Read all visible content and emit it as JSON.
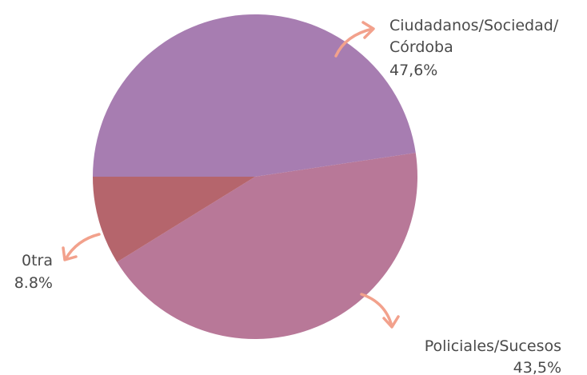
{
  "chart_data": {
    "type": "pie",
    "title": "",
    "slices": [
      {
        "label_lines": [
          "Ciudadanos/Sociedad/",
          "Córdoba"
        ],
        "value": 47.6,
        "value_text": "47,6%",
        "color": "#a77db1"
      },
      {
        "label_lines": [
          "Policiales/Sucesos"
        ],
        "value": 43.5,
        "value_text": "43,5%",
        "color": "#b87898"
      },
      {
        "label_lines": [
          "0tra"
        ],
        "value": 8.8,
        "value_text": "8.8%",
        "color": "#b5656c"
      }
    ],
    "arrow_color": "#f2a18c"
  }
}
